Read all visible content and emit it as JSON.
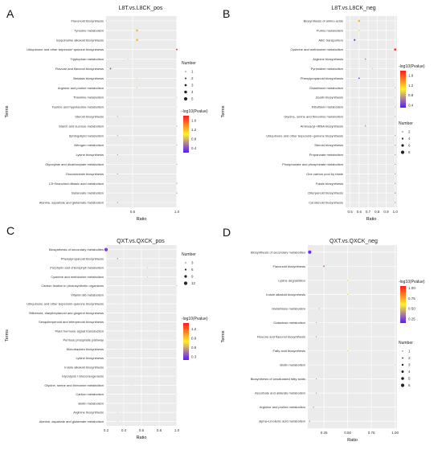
{
  "chart_data": [
    {
      "panel_letter": "A",
      "type": "scatter",
      "title": "L8T.vs.L8CK_pos",
      "xlabel": "Ratio",
      "ylabel": "Terms",
      "xlim": [
        0.2,
        1.0
      ],
      "xticks": [
        "0.5",
        "1.0"
      ],
      "grid": true,
      "legend_position": "right",
      "color_legend": {
        "title": "-log10(Pvalue)",
        "ticks": [
          "1.6",
          "1.2",
          "0.8",
          "0.4"
        ],
        "range": [
          0.2,
          1.8
        ]
      },
      "size_legend": {
        "title": "Number",
        "ticks": [
          "1",
          "2",
          "3",
          "4",
          "5"
        ]
      },
      "terms": [
        "Flavonoid biosynthesis",
        "Tyrosine metabolism",
        "Isoquinoline alkaloid biosynthesis",
        "Ubiquinone and other terpenoid−quinone biosynthesis",
        "Tryptophan metabolism",
        "Flavone and flavonol biosynthesis",
        "Betalain biosynthesis",
        "Arginine and proline metabolism",
        "Thiamine metabolism",
        "Taurine and hypotaurine metabolism",
        "Steroid biosynthesis",
        "Starch and sucrose metabolism",
        "Sphingolipid metabolism",
        "Nitrogen metabolism",
        "Lysine biosynthesis",
        "Glyoxylate and dicarboxylate metabolism",
        "Glucosinolate biosynthesis",
        "C5−Branched dibasic acid metabolism",
        "Butanoate metabolism",
        "Alanine, aspartate and glutamate metabolism"
      ],
      "points": [
        {
          "ratio": 0.2,
          "number": 1,
          "pvalue": 1.35
        },
        {
          "ratio": 0.55,
          "number": 3,
          "pvalue": 1.2
        },
        {
          "ratio": 0.55,
          "number": 3,
          "pvalue": 1.2
        },
        {
          "ratio": 1.0,
          "number": 2,
          "pvalue": 1.7
        },
        {
          "ratio": 0.45,
          "number": 1,
          "pvalue": 0.9
        },
        {
          "ratio": 0.25,
          "number": 2,
          "pvalue": 0.4
        },
        {
          "ratio": 0.55,
          "number": 1,
          "pvalue": 1.0
        },
        {
          "ratio": 0.55,
          "number": 1,
          "pvalue": 0.9
        },
        {
          "ratio": 1.0,
          "number": 1,
          "pvalue": 0.85
        },
        {
          "ratio": 1.0,
          "number": 1,
          "pvalue": 0.85
        },
        {
          "ratio": 0.33,
          "number": 1,
          "pvalue": 0.7
        },
        {
          "ratio": 1.0,
          "number": 1,
          "pvalue": 0.7
        },
        {
          "ratio": 0.33,
          "number": 1,
          "pvalue": 0.7
        },
        {
          "ratio": 1.0,
          "number": 1,
          "pvalue": 0.75
        },
        {
          "ratio": 0.33,
          "number": 1,
          "pvalue": 0.55
        },
        {
          "ratio": 1.0,
          "number": 1,
          "pvalue": 0.65
        },
        {
          "ratio": 0.33,
          "number": 1,
          "pvalue": 0.6
        },
        {
          "ratio": 1.0,
          "number": 1,
          "pvalue": 0.6
        },
        {
          "ratio": 1.0,
          "number": 1,
          "pvalue": 0.55
        },
        {
          "ratio": 0.33,
          "number": 1,
          "pvalue": 0.45
        }
      ]
    },
    {
      "panel_letter": "B",
      "type": "scatter",
      "title": "L8T.vs.L8CK_neg",
      "xlabel": "Ratio",
      "ylabel": "Terms",
      "xlim": [
        0.45,
        1.02
      ],
      "xticks": [
        "0.5",
        "0.6",
        "0.7",
        "0.8",
        "0.9",
        "1.0"
      ],
      "grid": true,
      "legend_position": "right",
      "color_legend": {
        "title": "-log10(Pvalue)",
        "ticks": [
          "1.6",
          "1.2",
          "0.8",
          "0.4"
        ],
        "range": [
          0.3,
          1.8
        ]
      },
      "size_legend": {
        "title": "Number",
        "ticks": [
          "2",
          "4",
          "6",
          "8"
        ]
      },
      "terms": [
        "Biosynthesis of amino acids",
        "Purine metabolism",
        "ABC transporters",
        "Cysteine and methionine metabolism",
        "Arginine biosynthesis",
        "Pyrimidine metabolism",
        "Phenylpropanoid biosynthesis",
        "Glutathione metabolism",
        "Zeatin biosynthesis",
        "Riboflavin metabolism",
        "Glycine, serine and threonine metabolism",
        "Aminoacyl−tRNA biosynthesis",
        "Ubiquinone and other terpenoid−quinone biosynthesis",
        "Steroid biosynthesis",
        "Propanoate metabolism",
        "Phosphonate and phosphinate metabolism",
        "One carbon pool by folate",
        "Folate biosynthesis",
        "Diterpenoid biosynthesis",
        "Carotenoid biosynthesis"
      ],
      "points": [
        {
          "ratio": 0.6,
          "number": 5,
          "pvalue": 1.25
        },
        {
          "ratio": 0.6,
          "number": 3,
          "pvalue": 1.0
        },
        {
          "ratio": 0.55,
          "number": 4,
          "pvalue": 0.4
        },
        {
          "ratio": 1.0,
          "number": 5,
          "pvalue": 1.75
        },
        {
          "ratio": 0.67,
          "number": 3,
          "pvalue": 1.5
        },
        {
          "ratio": 0.75,
          "number": 3,
          "pvalue": 1.0
        },
        {
          "ratio": 0.6,
          "number": 3,
          "pvalue": 0.35
        },
        {
          "ratio": 1.0,
          "number": 2,
          "pvalue": 0.8
        },
        {
          "ratio": 1.0,
          "number": 2,
          "pvalue": 0.9
        },
        {
          "ratio": 1.0,
          "number": 2,
          "pvalue": 0.75
        },
        {
          "ratio": 1.0,
          "number": 2,
          "pvalue": 0.7
        },
        {
          "ratio": 0.67,
          "number": 2,
          "pvalue": 0.5
        },
        {
          "ratio": 1.0,
          "number": 2,
          "pvalue": 0.65
        },
        {
          "ratio": 1.0,
          "number": 2,
          "pvalue": 0.65
        },
        {
          "ratio": 1.0,
          "number": 2,
          "pvalue": 0.6
        },
        {
          "ratio": 1.0,
          "number": 2,
          "pvalue": 0.6
        },
        {
          "ratio": 1.0,
          "number": 2,
          "pvalue": 0.55
        },
        {
          "ratio": 1.0,
          "number": 2,
          "pvalue": 0.55
        },
        {
          "ratio": 1.0,
          "number": 2,
          "pvalue": 0.5
        },
        {
          "ratio": 1.0,
          "number": 2,
          "pvalue": 0.5
        }
      ]
    },
    {
      "panel_letter": "C",
      "type": "scatter",
      "title": "QXT.vs.QXCK_pos",
      "xlabel": "Ratio",
      "ylabel": "Terms",
      "xlim": [
        0.2,
        1.0
      ],
      "xticks": [
        "0.2",
        "0.4",
        "0.6",
        "0.8",
        "1.0"
      ],
      "grid": true,
      "legend_position": "right",
      "color_legend": {
        "title": "-log10(Pvalue)",
        "ticks": [
          "1.2",
          "0.9",
          "0.6",
          "0.3"
        ],
        "range": [
          0.2,
          1.4
        ]
      },
      "size_legend": {
        "title": "Number",
        "ticks": [
          "3",
          "6",
          "9",
          "12"
        ]
      },
      "terms": [
        "Biosynthesis of secondary metabolites",
        "Phenylpropanoid biosynthesis",
        "Porphyrin and chlorophyll metabolism",
        "Cysteine and methionine metabolism",
        "Carbon fixation in photosynthetic organisms",
        "Vitamin B6 metabolism",
        "Ubiquinone and other terpenoid−quinone biosynthesis",
        "Stilbenoid, diarylheptanoid and gingerol biosynthesis",
        "Sesquiterpenoid and triterpenoid biosynthesis",
        "Plant hormone signal transduction",
        "Pentose phosphate pathway",
        "Monobactam biosynthesis",
        "Lysine biosynthesis",
        "Indole alkaloid biosynthesis",
        "Glycolysis / Gluconeogenesis",
        "Glycine, serine and threonine metabolism",
        "Carbon metabolism",
        "Biotin metabolism",
        "Arginine biosynthesis",
        "Alanine, aspartate and glutamate metabolism"
      ],
      "points": [
        {
          "ratio": 0.2,
          "number": 12,
          "pvalue": 0.3
        },
        {
          "ratio": 0.33,
          "number": 3,
          "pvalue": 0.4
        },
        {
          "ratio": 0.67,
          "number": 2,
          "pvalue": 1.1
        },
        {
          "ratio": 0.67,
          "number": 2,
          "pvalue": 1.15
        },
        {
          "ratio": 1.0,
          "number": 2,
          "pvalue": 1.4
        },
        {
          "ratio": 1.0,
          "number": 1,
          "pvalue": 0.9
        },
        {
          "ratio": 0.33,
          "number": 1,
          "pvalue": 0.6
        },
        {
          "ratio": 0.5,
          "number": 1,
          "pvalue": 0.7
        },
        {
          "ratio": 0.5,
          "number": 1,
          "pvalue": 0.65
        },
        {
          "ratio": 0.5,
          "number": 1,
          "pvalue": 0.6
        },
        {
          "ratio": 0.5,
          "number": 1,
          "pvalue": 0.55
        },
        {
          "ratio": 0.33,
          "number": 1,
          "pvalue": 0.5
        },
        {
          "ratio": 0.5,
          "number": 1,
          "pvalue": 0.6
        },
        {
          "ratio": 1.0,
          "number": 1,
          "pvalue": 0.55
        },
        {
          "ratio": 1.0,
          "number": 1,
          "pvalue": 0.5
        },
        {
          "ratio": 0.5,
          "number": 1,
          "pvalue": 0.45
        },
        {
          "ratio": 1.0,
          "number": 1,
          "pvalue": 0.5
        },
        {
          "ratio": 1.0,
          "number": 1,
          "pvalue": 0.45
        },
        {
          "ratio": 0.33,
          "number": 1,
          "pvalue": 0.4
        },
        {
          "ratio": 0.33,
          "number": 1,
          "pvalue": 0.35
        }
      ]
    },
    {
      "panel_letter": "D",
      "type": "scatter",
      "title": "QXT.vs.QXCK_neg",
      "xlabel": "Ratio",
      "ylabel": "Terms",
      "xlim": [
        0.08,
        1.02
      ],
      "xticks": [
        "0.25",
        "0.50",
        "0.75",
        "1.00"
      ],
      "grid": true,
      "legend_position": "right",
      "color_legend": {
        "title": "-log10(Pvalue)",
        "ticks": [
          "1.00",
          "0.75",
          "0.50",
          "0.25"
        ],
        "range": [
          0.15,
          1.05
        ]
      },
      "size_legend": {
        "title": "Number",
        "ticks": [
          "1",
          "2",
          "3",
          "4",
          "5",
          "6"
        ]
      },
      "terms": [
        "Biosynthesis of secondary metabolites",
        "Flavonoid biosynthesis",
        "Lysine degradation",
        "Indole alkaloid biosynthesis",
        "Glutathione metabolism",
        "Galactose metabolism",
        "Flavone and flavonol biosynthesis",
        "Fatty acid biosynthesis",
        "Biotin metabolism",
        "Biosynthesis of unsaturated fatty acids",
        "Ascorbate and aldarate metabolism",
        "Arginine and proline metabolism",
        "alpha−Linolenic acid metabolism"
      ],
      "points": [
        {
          "ratio": 0.1,
          "number": 6,
          "pvalue": 0.2
        },
        {
          "ratio": 0.25,
          "number": 2,
          "pvalue": 0.95
        },
        {
          "ratio": 0.5,
          "number": 1,
          "pvalue": 0.5
        },
        {
          "ratio": 0.5,
          "number": 1,
          "pvalue": 0.5
        },
        {
          "ratio": 0.2,
          "number": 1,
          "pvalue": 0.45
        },
        {
          "ratio": 0.17,
          "number": 1,
          "pvalue": 0.4
        },
        {
          "ratio": 0.17,
          "number": 1,
          "pvalue": 0.4
        },
        {
          "ratio": 0.5,
          "number": 1,
          "pvalue": 0.5
        },
        {
          "ratio": 1.0,
          "number": 1,
          "pvalue": 0.7
        },
        {
          "ratio": 0.17,
          "number": 1,
          "pvalue": 0.4
        },
        {
          "ratio": 0.17,
          "number": 1,
          "pvalue": 0.4
        },
        {
          "ratio": 0.14,
          "number": 1,
          "pvalue": 0.35
        },
        {
          "ratio": 0.1,
          "number": 1,
          "pvalue": 0.3
        }
      ]
    }
  ],
  "colors": {
    "low": "#5b18ff",
    "mid": "#ffee2b",
    "high": "#ff1a1a",
    "panel_bg": "#ebebeb",
    "grid": "#ffffff"
  }
}
